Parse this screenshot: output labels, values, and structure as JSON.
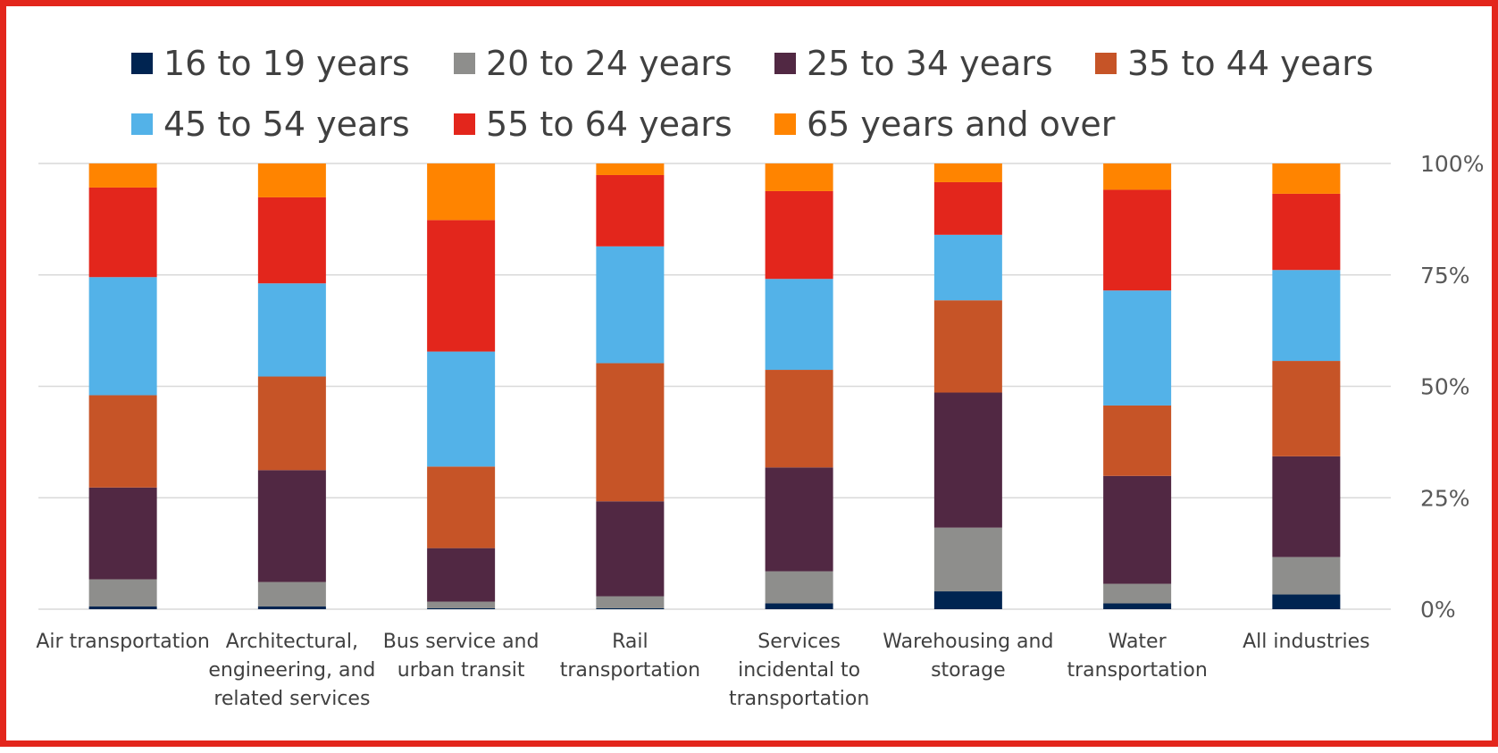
{
  "chart_data": {
    "type": "bar",
    "stacked": true,
    "normalized": true,
    "title": "",
    "xlabel": "",
    "ylabel": "",
    "ylim": [
      0,
      100
    ],
    "y_axis_side": "right",
    "y_ticks": [
      0,
      25,
      50,
      75,
      100
    ],
    "y_tick_labels": [
      "0%",
      "25%",
      "50%",
      "75%",
      "100%"
    ],
    "grid": true,
    "legend_position": "top",
    "categories": [
      [
        "Air transportation"
      ],
      [
        "Architectural,",
        "engineering, and",
        "related services"
      ],
      [
        "Bus service and",
        "urban transit"
      ],
      [
        "Rail",
        "transportation"
      ],
      [
        "Services",
        "incidental to",
        "transportation"
      ],
      [
        "Warehousing and",
        "storage"
      ],
      [
        "Water",
        "transportation"
      ],
      [
        "All industries"
      ]
    ],
    "series": [
      {
        "name": "16 to 19 years",
        "color": "#002451",
        "values": [
          0.6,
          0.6,
          0.2,
          0.2,
          1.3,
          4.0,
          1.3,
          3.3
        ]
      },
      {
        "name": "20 to 24 years",
        "color": "#8e8e8c",
        "values": [
          6.1,
          5.5,
          1.5,
          2.7,
          7.2,
          14.3,
          4.4,
          8.4
        ]
      },
      {
        "name": "25 to 34 years",
        "color": "#512843",
        "values": [
          20.6,
          25.1,
          12.0,
          21.3,
          23.3,
          30.3,
          24.2,
          22.6
        ]
      },
      {
        "name": "35 to 44 years",
        "color": "#c65427",
        "values": [
          20.7,
          21.0,
          18.3,
          31.0,
          21.9,
          20.7,
          15.8,
          21.4
        ]
      },
      {
        "name": "45 to 54 years",
        "color": "#53b2e8",
        "values": [
          26.5,
          20.9,
          25.8,
          26.2,
          20.4,
          14.7,
          25.8,
          20.4
        ]
      },
      {
        "name": "55 to 64 years",
        "color": "#e3261c",
        "values": [
          20.1,
          19.3,
          29.5,
          16.0,
          19.7,
          11.8,
          22.6,
          17.1
        ]
      },
      {
        "name": "65 years and over",
        "color": "#ff8400",
        "values": [
          5.4,
          7.6,
          12.7,
          2.6,
          6.2,
          4.2,
          5.9,
          6.8
        ]
      }
    ]
  }
}
